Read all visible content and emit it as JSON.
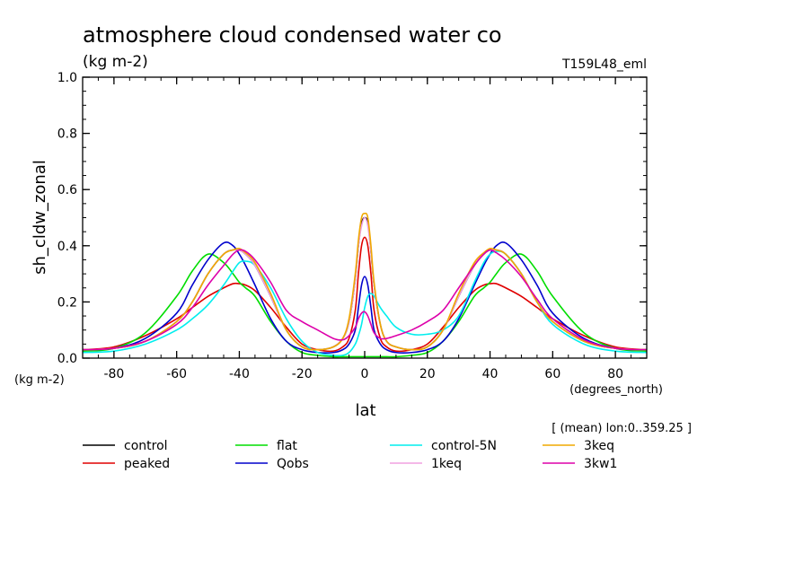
{
  "chart_data": {
    "type": "line",
    "title": "atmosphere cloud condensed water co",
    "units_label": "(kg m-2)",
    "run_label": "T159L48_eml",
    "ylabel": "sh_cldw_zonal",
    "xlabel": "lat",
    "x_units": "(degrees_north)",
    "y_units": "(kg m-2)",
    "mean_note": "[ (mean) lon:0..359.25 ]",
    "xlim": [
      -90,
      90
    ],
    "ylim": [
      0.0,
      1.0
    ],
    "x_ticks": [
      -80,
      -60,
      -40,
      -20,
      0,
      20,
      40,
      60,
      80
    ],
    "x_tick_labels": [
      "-80",
      "-60",
      "-40",
      "-20",
      "0",
      "20",
      "40",
      "60",
      "80"
    ],
    "y_ticks": [
      0.0,
      0.2,
      0.4,
      0.6,
      0.8,
      1.0
    ],
    "y_tick_labels": [
      "0.0",
      "0.2",
      "0.4",
      "0.6",
      "0.8",
      "1.0"
    ],
    "grid": false,
    "legend_position": "bottom",
    "x": [
      -90,
      -80,
      -70,
      -60,
      -55,
      -50,
      -45,
      -42,
      -40,
      -38,
      -35,
      -30,
      -25,
      -20,
      -15,
      -10,
      -7,
      -5,
      -3,
      -2,
      -1,
      0,
      1,
      2,
      3,
      5,
      7,
      10,
      15,
      20,
      25,
      30,
      35,
      38,
      40,
      42,
      45,
      50,
      55,
      60,
      70,
      80,
      90
    ],
    "series": [
      {
        "name": "control",
        "color": "#000000",
        "values": [
          0.03,
          0.035,
          0.06,
          0.13,
          0.2,
          0.3,
          0.37,
          0.385,
          0.385,
          0.37,
          0.33,
          0.22,
          0.1,
          0.04,
          0.03,
          0.04,
          0.07,
          0.13,
          0.28,
          0.4,
          0.48,
          0.5,
          0.48,
          0.38,
          0.26,
          0.12,
          0.06,
          0.04,
          0.03,
          0.04,
          0.1,
          0.22,
          0.33,
          0.37,
          0.385,
          0.385,
          0.37,
          0.3,
          0.2,
          0.13,
          0.06,
          0.035,
          0.03
        ]
      },
      {
        "name": "peaked",
        "color": "#e00000",
        "values": [
          0.03,
          0.04,
          0.08,
          0.14,
          0.18,
          0.22,
          0.25,
          0.265,
          0.265,
          0.26,
          0.24,
          0.18,
          0.11,
          0.05,
          0.03,
          0.025,
          0.04,
          0.07,
          0.17,
          0.3,
          0.4,
          0.43,
          0.4,
          0.3,
          0.17,
          0.07,
          0.04,
          0.025,
          0.03,
          0.05,
          0.11,
          0.18,
          0.24,
          0.26,
          0.265,
          0.265,
          0.25,
          0.22,
          0.18,
          0.14,
          0.08,
          0.04,
          0.03
        ]
      },
      {
        "name": "flat",
        "color": "#00dd00",
        "values": [
          0.025,
          0.035,
          0.09,
          0.22,
          0.31,
          0.37,
          0.34,
          0.3,
          0.27,
          0.25,
          0.22,
          0.13,
          0.06,
          0.02,
          0.01,
          0.005,
          0.005,
          0.005,
          0.005,
          0.005,
          0.005,
          0.005,
          0.005,
          0.005,
          0.005,
          0.005,
          0.005,
          0.005,
          0.01,
          0.02,
          0.06,
          0.13,
          0.22,
          0.25,
          0.27,
          0.3,
          0.34,
          0.37,
          0.31,
          0.22,
          0.09,
          0.035,
          0.025
        ]
      },
      {
        "name": "Qobs",
        "color": "#0000cc",
        "values": [
          0.03,
          0.035,
          0.07,
          0.16,
          0.26,
          0.35,
          0.41,
          0.4,
          0.37,
          0.33,
          0.26,
          0.14,
          0.06,
          0.03,
          0.02,
          0.02,
          0.03,
          0.05,
          0.1,
          0.18,
          0.26,
          0.29,
          0.26,
          0.18,
          0.1,
          0.05,
          0.03,
          0.02,
          0.02,
          0.03,
          0.06,
          0.14,
          0.26,
          0.33,
          0.37,
          0.4,
          0.41,
          0.35,
          0.26,
          0.16,
          0.07,
          0.035,
          0.03
        ]
      },
      {
        "name": "control-5N",
        "color": "#00eeee",
        "values": [
          0.02,
          0.025,
          0.05,
          0.1,
          0.14,
          0.19,
          0.26,
          0.31,
          0.34,
          0.345,
          0.33,
          0.25,
          0.14,
          0.06,
          0.02,
          0.01,
          0.01,
          0.02,
          0.05,
          0.08,
          0.12,
          0.18,
          0.22,
          0.23,
          0.22,
          0.18,
          0.15,
          0.11,
          0.085,
          0.085,
          0.1,
          0.15,
          0.27,
          0.34,
          0.37,
          0.38,
          0.37,
          0.3,
          0.2,
          0.12,
          0.05,
          0.025,
          0.02
        ]
      },
      {
        "name": "1keq",
        "color": "#f0a0e0",
        "values": [
          0.03,
          0.035,
          0.06,
          0.13,
          0.2,
          0.3,
          0.37,
          0.385,
          0.385,
          0.37,
          0.33,
          0.22,
          0.1,
          0.04,
          0.03,
          0.04,
          0.07,
          0.13,
          0.28,
          0.4,
          0.47,
          0.5,
          0.47,
          0.38,
          0.26,
          0.12,
          0.06,
          0.04,
          0.03,
          0.04,
          0.1,
          0.22,
          0.33,
          0.37,
          0.385,
          0.385,
          0.37,
          0.3,
          0.2,
          0.13,
          0.06,
          0.035,
          0.03
        ]
      },
      {
        "name": "3keq",
        "color": "#f0a800",
        "values": [
          0.03,
          0.035,
          0.06,
          0.13,
          0.2,
          0.3,
          0.37,
          0.385,
          0.39,
          0.375,
          0.34,
          0.23,
          0.1,
          0.04,
          0.03,
          0.04,
          0.07,
          0.14,
          0.3,
          0.42,
          0.5,
          0.515,
          0.5,
          0.4,
          0.27,
          0.12,
          0.06,
          0.04,
          0.03,
          0.04,
          0.1,
          0.23,
          0.34,
          0.375,
          0.39,
          0.385,
          0.37,
          0.3,
          0.2,
          0.13,
          0.06,
          0.035,
          0.03
        ]
      },
      {
        "name": "3kw1",
        "color": "#dd00aa",
        "values": [
          0.03,
          0.035,
          0.06,
          0.12,
          0.18,
          0.26,
          0.33,
          0.37,
          0.385,
          0.38,
          0.35,
          0.27,
          0.17,
          0.13,
          0.1,
          0.07,
          0.065,
          0.08,
          0.11,
          0.14,
          0.16,
          0.165,
          0.15,
          0.12,
          0.09,
          0.07,
          0.07,
          0.08,
          0.1,
          0.13,
          0.17,
          0.25,
          0.33,
          0.37,
          0.385,
          0.375,
          0.35,
          0.29,
          0.21,
          0.14,
          0.065,
          0.035,
          0.03
        ]
      }
    ]
  }
}
